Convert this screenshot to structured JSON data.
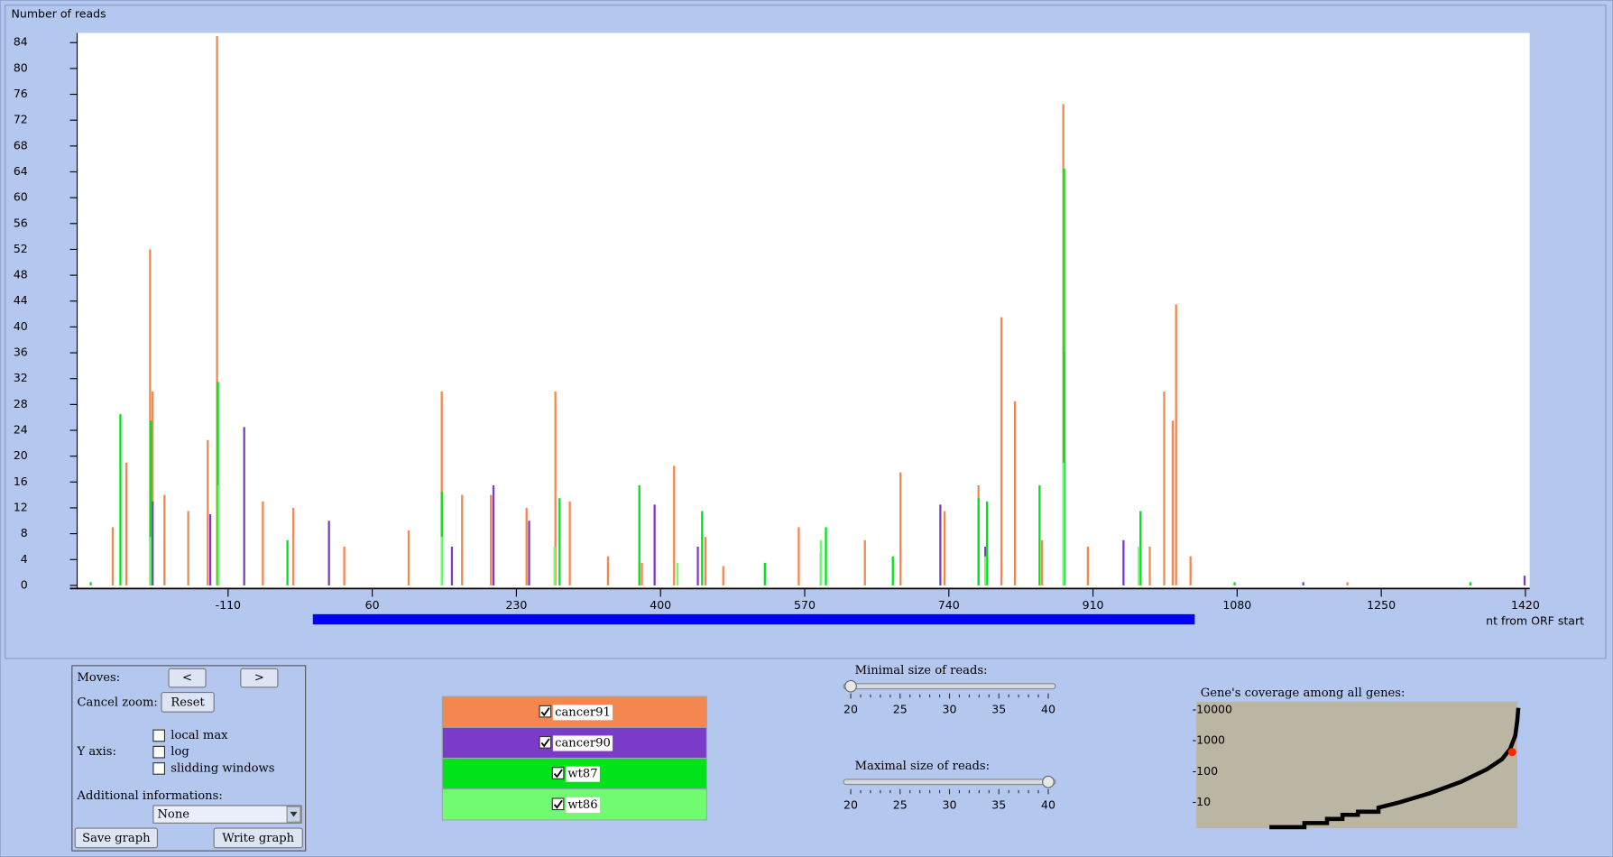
{
  "chart_data": {
    "type": "bar",
    "y_label": "Number of reads",
    "x_label": "nt from ORF start",
    "xlim": [
      -288,
      1425
    ],
    "xticks": [
      -110,
      60,
      230,
      400,
      570,
      740,
      910,
      1080,
      1250,
      1420
    ],
    "ylim": [
      0,
      85.5
    ],
    "yticks": [
      0,
      4,
      8,
      12,
      16,
      20,
      24,
      28,
      32,
      36,
      40,
      44,
      48,
      52,
      56,
      60,
      64,
      68,
      72,
      76,
      80,
      84
    ],
    "orf_range": [
      -10,
      1030
    ],
    "orf_color": "#0000ff",
    "series": [
      {
        "name": "cancer91",
        "color": "#f4874f",
        "visible": true,
        "x": [
          -246,
          -230,
          -202,
          -199,
          -185,
          -157,
          -134,
          -123,
          -69,
          -33,
          27,
          103,
          142,
          166,
          200,
          242,
          276,
          293,
          338,
          378,
          416,
          453,
          474,
          563,
          641,
          683,
          735,
          775,
          802,
          818,
          850,
          875,
          904,
          977,
          994,
          1004,
          1008,
          1025,
          1210
        ],
        "values": [
          9,
          19,
          52,
          30,
          14,
          11.5,
          22.5,
          85,
          13,
          12,
          6,
          8.5,
          30,
          14,
          14,
          12,
          30,
          13,
          4.5,
          3.5,
          18.5,
          7.5,
          3,
          9,
          7,
          17.5,
          11.5,
          15.5,
          41.5,
          28.5,
          7,
          74.5,
          6,
          6,
          30,
          25.5,
          43.5,
          4.5,
          0.5
        ]
      },
      {
        "name": "cancer90",
        "color": "#7a3cc8",
        "visible": true,
        "x": [
          -199,
          -131,
          -91,
          9,
          154,
          203,
          245,
          393,
          444,
          589,
          730,
          783,
          876,
          946,
          1158,
          1419
        ],
        "values": [
          13,
          11,
          24.5,
          10,
          6,
          15.5,
          10,
          12.5,
          6,
          5,
          12.5,
          6,
          36,
          7,
          0.5,
          1.5
        ]
      },
      {
        "name": "wt87",
        "color": "#00e21a",
        "visible": true,
        "x": [
          -272,
          -237,
          -201,
          -122,
          -40,
          142,
          281,
          375,
          449,
          523,
          595,
          674,
          775,
          785,
          847,
          876,
          966,
          1077,
          1355
        ],
        "values": [
          0.5,
          26.5,
          25.5,
          31.5,
          7,
          14.5,
          13.5,
          15.5,
          11.5,
          3.5,
          9,
          4.5,
          13.5,
          13,
          15.5,
          64.5,
          11.5,
          0.5,
          0.5
        ]
      },
      {
        "name": "wt86",
        "color": "#70fb70",
        "visible": true,
        "x": [
          -202,
          -121,
          142,
          275,
          420,
          589,
          783,
          875,
          964
        ],
        "values": [
          7.5,
          15.5,
          7.5,
          6,
          3.5,
          7,
          4.5,
          19,
          6
        ]
      }
    ]
  },
  "controls": {
    "moves_label": "Moves:",
    "prev": "<",
    "next": ">",
    "cancel_zoom_label": "Cancel zoom:",
    "reset": "Reset",
    "y_axis_label": "Y axis:",
    "y_axis_options": [
      {
        "label": "local max",
        "checked": false
      },
      {
        "label": "log",
        "checked": false
      },
      {
        "label": "slidding windows",
        "checked": false
      }
    ],
    "additional_label": "Additional informations:",
    "additional_value": "None",
    "save": "Save graph",
    "write": "Write graph"
  },
  "size_sliders": {
    "ticks": [
      20,
      25,
      30,
      35,
      40
    ],
    "min_label": "Minimal size of reads:",
    "min_value": 20,
    "max_label": "Maximal size of reads:",
    "max_value": 40
  },
  "coverage": {
    "title": "Gene's coverage among all genes:",
    "labels": [
      "-10000",
      "-1000",
      "-100",
      "-10"
    ]
  }
}
